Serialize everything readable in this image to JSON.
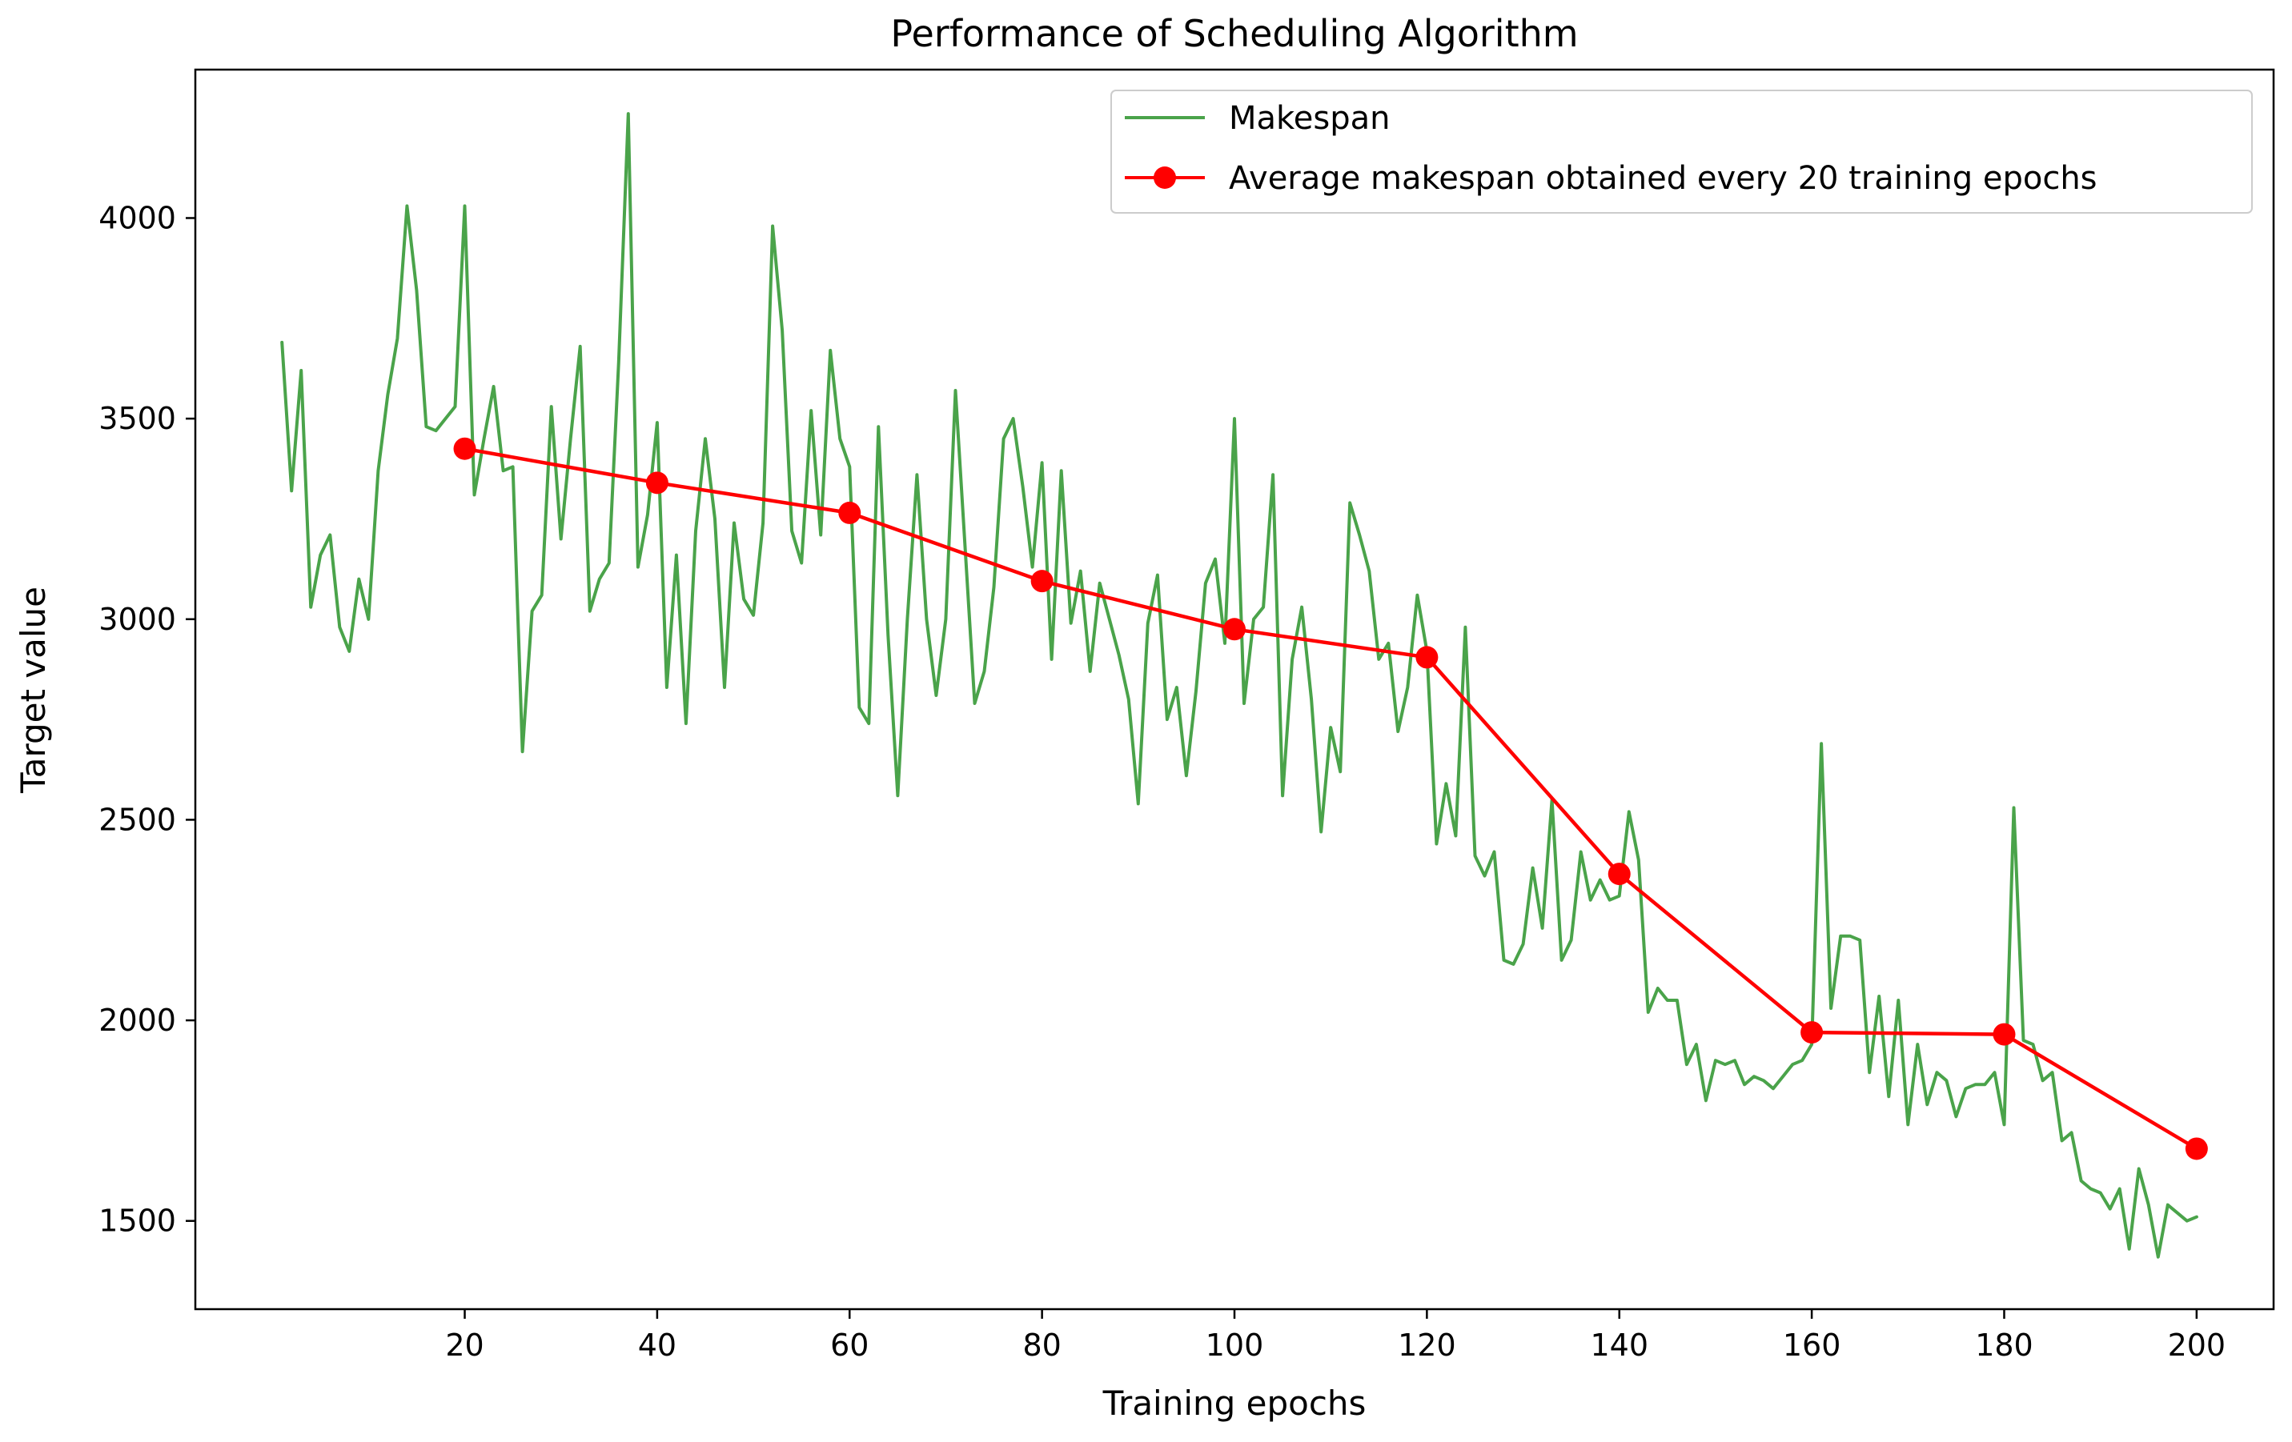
{
  "chart_data": {
    "type": "line",
    "title": "Performance of Scheduling Algorithm",
    "xlabel": "Training epochs",
    "ylabel": "Target value",
    "xlim": [
      -8,
      208
    ],
    "ylim": [
      1280,
      4370
    ],
    "xticks": [
      20,
      40,
      60,
      80,
      100,
      120,
      140,
      160,
      180,
      200
    ],
    "yticks": [
      1500,
      2000,
      2500,
      3000,
      3500,
      4000
    ],
    "grid": false,
    "legend_position": "top-right",
    "colors": {
      "makespan": "#4aa34a",
      "average": "#ff0000"
    },
    "series": [
      {
        "name": "Makespan",
        "style": "line",
        "x": [
          1,
          2,
          3,
          4,
          5,
          6,
          7,
          8,
          9,
          10,
          11,
          12,
          13,
          14,
          15,
          16,
          17,
          18,
          19,
          20,
          21,
          22,
          23,
          24,
          25,
          26,
          27,
          28,
          29,
          30,
          31,
          32,
          33,
          34,
          35,
          36,
          37,
          38,
          39,
          40,
          41,
          42,
          43,
          44,
          45,
          46,
          47,
          48,
          49,
          50,
          51,
          52,
          53,
          54,
          55,
          56,
          57,
          58,
          59,
          60,
          61,
          62,
          63,
          64,
          65,
          66,
          67,
          68,
          69,
          70,
          71,
          72,
          73,
          74,
          75,
          76,
          77,
          78,
          79,
          80,
          81,
          82,
          83,
          84,
          85,
          86,
          87,
          88,
          89,
          90,
          91,
          92,
          93,
          94,
          95,
          96,
          97,
          98,
          99,
          100,
          101,
          102,
          103,
          104,
          105,
          106,
          107,
          108,
          109,
          110,
          111,
          112,
          113,
          114,
          115,
          116,
          117,
          118,
          119,
          120,
          121,
          122,
          123,
          124,
          125,
          126,
          127,
          128,
          129,
          130,
          131,
          132,
          133,
          134,
          135,
          136,
          137,
          138,
          139,
          140,
          141,
          142,
          143,
          144,
          145,
          146,
          147,
          148,
          149,
          150,
          151,
          152,
          153,
          154,
          155,
          156,
          157,
          158,
          159,
          160,
          161,
          162,
          163,
          164,
          165,
          166,
          167,
          168,
          169,
          170,
          171,
          172,
          173,
          174,
          175,
          176,
          177,
          178,
          179,
          180,
          181,
          182,
          183,
          184,
          185,
          186,
          187,
          188,
          189,
          190,
          191,
          192,
          193,
          194,
          195,
          196,
          197,
          198,
          199,
          200
        ],
        "values": [
          3690,
          3320,
          3620,
          3030,
          3160,
          3210,
          2980,
          2920,
          3100,
          3000,
          3370,
          3560,
          3700,
          4030,
          3820,
          3480,
          3470,
          3500,
          3530,
          4030,
          3310,
          3450,
          3580,
          3370,
          3380,
          2670,
          3020,
          3060,
          3530,
          3200,
          3450,
          3680,
          3020,
          3100,
          3140,
          3640,
          4260,
          3130,
          3260,
          3490,
          2830,
          3160,
          2740,
          3220,
          3450,
          3250,
          2830,
          3240,
          3050,
          3010,
          3240,
          3980,
          3720,
          3220,
          3140,
          3520,
          3210,
          3670,
          3450,
          3380,
          2780,
          2740,
          3480,
          2960,
          2560,
          3000,
          3360,
          3000,
          2810,
          3000,
          3570,
          3180,
          2790,
          2870,
          3080,
          3450,
          3500,
          3330,
          3130,
          3390,
          2900,
          3370,
          2990,
          3120,
          2870,
          3090,
          3000,
          2910,
          2800,
          2540,
          2990,
          3110,
          2750,
          2830,
          2610,
          2820,
          3090,
          3150,
          2940,
          3500,
          2790,
          3000,
          3030,
          3360,
          2560,
          2900,
          3030,
          2800,
          2470,
          2730,
          2620,
          3290,
          3210,
          3120,
          2900,
          2940,
          2720,
          2830,
          3060,
          2920,
          2440,
          2590,
          2460,
          2980,
          2410,
          2360,
          2420,
          2150,
          2140,
          2190,
          2380,
          2230,
          2550,
          2150,
          2200,
          2420,
          2300,
          2350,
          2300,
          2310,
          2520,
          2400,
          2020,
          2080,
          2050,
          2050,
          1890,
          1940,
          1800,
          1900,
          1890,
          1900,
          1840,
          1860,
          1850,
          1830,
          1860,
          1890,
          1900,
          1940,
          2690,
          2030,
          2210,
          2210,
          2200,
          1870,
          2060,
          1810,
          2050,
          1740,
          1940,
          1790,
          1870,
          1850,
          1760,
          1830,
          1840,
          1840,
          1870,
          1740,
          2530,
          1950,
          1940,
          1850,
          1870,
          1700,
          1720,
          1600,
          1580,
          1570,
          1530,
          1580,
          1430,
          1630,
          1540,
          1410,
          1540,
          1520,
          1500,
          1510
        ]
      },
      {
        "name": "Average makespan obtained every 20 training epochs",
        "style": "line-marker",
        "x": [
          20,
          40,
          60,
          80,
          100,
          120,
          140,
          160,
          180,
          200
        ],
        "values": [
          3425,
          3340,
          3265,
          3095,
          2975,
          2905,
          2365,
          1970,
          1965,
          1680
        ]
      }
    ]
  }
}
